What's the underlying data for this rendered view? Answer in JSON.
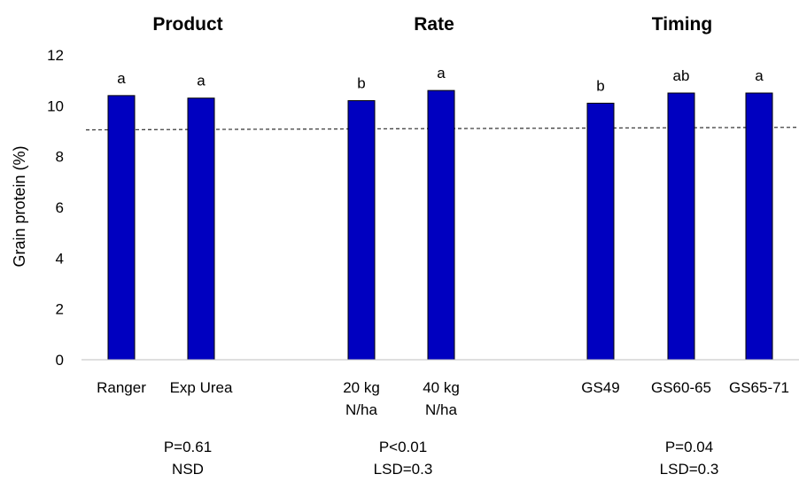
{
  "chart_data": {
    "type": "bar",
    "ylabel": "Grain protein (%)",
    "xlabel": "",
    "ylim": [
      0,
      12
    ],
    "yticks": [
      "0",
      "2",
      "4",
      "6",
      "8",
      "10",
      "12"
    ],
    "grid": false,
    "legend": "none",
    "bar_color": "#0000C0",
    "reference_line": {
      "y_start": 9.05,
      "y_end": 9.15,
      "style": "dashed"
    },
    "groups": [
      {
        "title": "Product",
        "stats": [
          "P=0.61",
          "NSD"
        ],
        "bars": [
          {
            "label": [
              "Ranger"
            ],
            "value": 10.4,
            "letter": "a"
          },
          {
            "label": [
              "Exp Urea"
            ],
            "value": 10.3,
            "letter": "a"
          }
        ]
      },
      {
        "title": "Rate",
        "stats": [
          "P<0.01",
          "LSD=0.3"
        ],
        "bars": [
          {
            "label": [
              "20 kg",
              "N/ha"
            ],
            "value": 10.2,
            "letter": "b"
          },
          {
            "label": [
              "40 kg",
              "N/ha"
            ],
            "value": 10.6,
            "letter": "a"
          }
        ]
      },
      {
        "title": "Timing",
        "stats": [
          "P=0.04",
          "LSD=0.3"
        ],
        "bars": [
          {
            "label": [
              "GS49"
            ],
            "value": 10.1,
            "letter": "b"
          },
          {
            "label": [
              "GS60-65"
            ],
            "value": 10.5,
            "letter": "ab"
          },
          {
            "label": [
              "GS65-71"
            ],
            "value": 10.5,
            "letter": "a"
          }
        ]
      }
    ]
  }
}
